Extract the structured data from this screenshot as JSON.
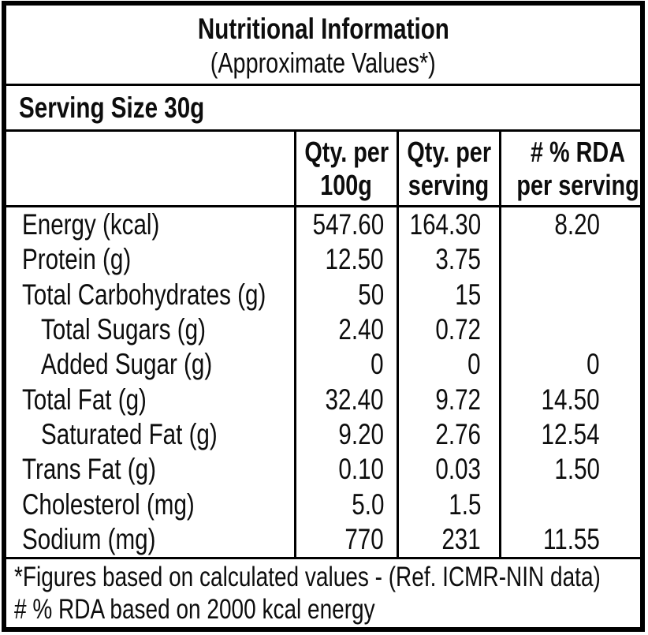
{
  "label": {
    "title": "Nutritional Information",
    "subtitle": "(Approximate Values*)",
    "serving_size": "Serving Size 30g",
    "columns": [
      {
        "line1": "Qty. per",
        "line2": "100g"
      },
      {
        "line1": "Qty. per",
        "line2": "serving"
      },
      {
        "line1": "# % RDA",
        "line2": "per serving"
      }
    ],
    "rows": [
      {
        "label": "Energy (kcal)",
        "qty_per_100g": "547.60",
        "qty_per_serving": "164.30",
        "rda_per_serving": "8.20"
      },
      {
        "label": "Protein (g)",
        "qty_per_100g": "12.50",
        "qty_per_serving": "3.75",
        "rda_per_serving": ""
      },
      {
        "label": "Total Carbohydrates (g)",
        "qty_per_100g": "50",
        "qty_per_serving": "15",
        "rda_per_serving": ""
      },
      {
        "label": "Total Sugars (g)",
        "qty_per_100g": "2.40",
        "qty_per_serving": "0.72",
        "rda_per_serving": ""
      },
      {
        "label": "Added Sugar (g)",
        "qty_per_100g": "0",
        "qty_per_serving": "0",
        "rda_per_serving": "0"
      },
      {
        "label": "Total Fat (g)",
        "qty_per_100g": "32.40",
        "qty_per_serving": "9.72",
        "rda_per_serving": "14.50"
      },
      {
        "label": "Saturated Fat (g)",
        "qty_per_100g": "9.20",
        "qty_per_serving": "2.76",
        "rda_per_serving": "12.54"
      },
      {
        "label": "Trans Fat (g)",
        "qty_per_100g": "0.10",
        "qty_per_serving": "0.03",
        "rda_per_serving": "1.50"
      },
      {
        "label": "Cholesterol (mg)",
        "qty_per_100g": "5.0",
        "qty_per_serving": "1.5",
        "rda_per_serving": ""
      },
      {
        "label": "Sodium (mg)",
        "qty_per_100g": "770",
        "qty_per_serving": "231",
        "rda_per_serving": "11.55"
      }
    ],
    "footnotes": {
      "line1": "*Figures based on calculated values - (Ref. ICMR-NIN data)",
      "line2": "# % RDA based on 2000 kcal energy"
    },
    "colors": {
      "text": "#0d0d0d",
      "border": "#000000",
      "background": "#ffffff"
    }
  }
}
